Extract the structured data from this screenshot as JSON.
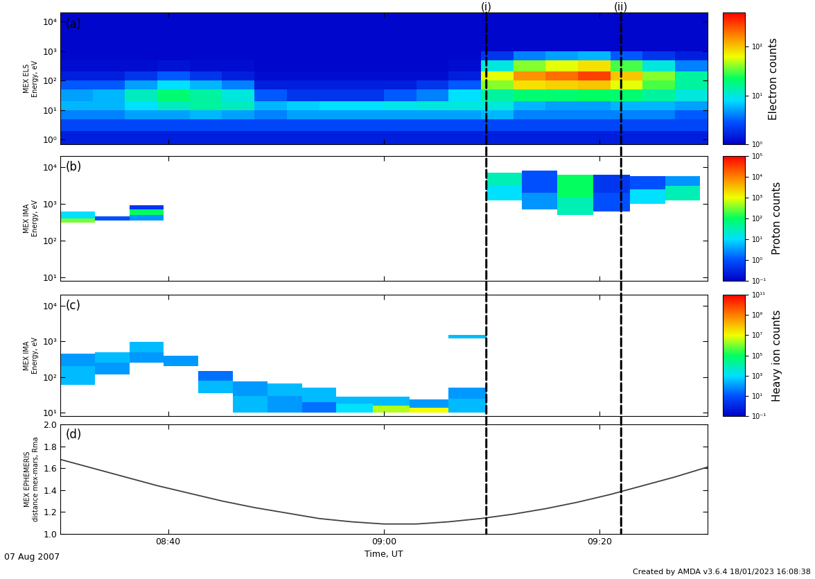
{
  "chart_data": [
    {
      "type": "spectrogram",
      "label": "(a)",
      "ylabel": "MEX ELS\nEnergy, eV",
      "log": "y",
      "tick_labels": "y",
      "xlim": [
        510,
        570
      ],
      "xticks": [
        {
          "value": 520,
          "label": "08:40"
        },
        {
          "value": 540,
          "label": "09:00"
        },
        {
          "value": 560,
          "label": "09:20"
        }
      ],
      "ylim": [
        0.7,
        20000
      ],
      "yticks": [
        {
          "value": 1,
          "label": "10⁰"
        },
        {
          "value": 10,
          "label": "10¹"
        },
        {
          "value": 100,
          "label": "10²"
        },
        {
          "value": 1000,
          "label": "10³"
        },
        {
          "value": 10000,
          "label": "10⁴"
        }
      ],
      "colorbar": {
        "label": "Electron counts",
        "range": [
          1,
          500
        ],
        "ticks": [
          {
            "value": 1,
            "label": "10⁰"
          },
          {
            "value": 10,
            "label": "10¹"
          },
          {
            "value": 100,
            "label": "10²"
          }
        ]
      },
      "time_edges": [
        510,
        513,
        516,
        519,
        522,
        525,
        528,
        531,
        534,
        537,
        540,
        543,
        546,
        549,
        552,
        555,
        558,
        561,
        564,
        567,
        570
      ],
      "energy_edges": [
        0.7,
        2,
        5,
        10,
        20,
        50,
        100,
        200,
        500,
        1000,
        20000
      ],
      "counts": [
        [
          1.5,
          1.5,
          1.5,
          1.5,
          1.5,
          1.5,
          1.5,
          1.5,
          1.5,
          1.5,
          1.5,
          1.5,
          1.5,
          1.5,
          1.5,
          1.5,
          1.5,
          1.5,
          1.5,
          1.5
        ],
        [
          2.5,
          2.5,
          2.5,
          2.5,
          2.5,
          2.5,
          2.5,
          2.5,
          2.5,
          2.5,
          2.5,
          2.5,
          2.5,
          2.5,
          2.5,
          2.5,
          2.5,
          2.5,
          2.5,
          2.5
        ],
        [
          4,
          4,
          5,
          5,
          6,
          5,
          4,
          5,
          5,
          5,
          5,
          5,
          5,
          6,
          4,
          4,
          4,
          4,
          4,
          3
        ],
        [
          6,
          6,
          8,
          12,
          15,
          12,
          6,
          7,
          8,
          8,
          9,
          10,
          10,
          10,
          6,
          5,
          5,
          6,
          6,
          5
        ],
        [
          5,
          6,
          12,
          20,
          15,
          10,
          3,
          2,
          2,
          2,
          3,
          4,
          8,
          15,
          20,
          20,
          22,
          20,
          15,
          10
        ],
        [
          3,
          3,
          5,
          8,
          6,
          4,
          1.5,
          1.5,
          1.5,
          1.5,
          1.5,
          2,
          3,
          40,
          80,
          90,
          100,
          60,
          30,
          15
        ],
        [
          1.5,
          1.5,
          2,
          3,
          2,
          1.5,
          1.2,
          1.2,
          1.2,
          1.2,
          1.2,
          1.2,
          1.5,
          60,
          150,
          200,
          300,
          100,
          40,
          15
        ],
        [
          1.2,
          1.2,
          1.2,
          1.3,
          1.2,
          1.2,
          1.1,
          1.1,
          1.1,
          1.1,
          1.1,
          1.1,
          1.2,
          10,
          40,
          60,
          80,
          30,
          10,
          4
        ],
        [
          1.1,
          1.1,
          1.1,
          1.1,
          1.1,
          1.1,
          1.1,
          1.1,
          1.1,
          1.1,
          1.1,
          1.1,
          1.1,
          2,
          4,
          5,
          6,
          3,
          2,
          1.5
        ],
        [
          1.1,
          1.1,
          1.1,
          1.1,
          1.1,
          1.1,
          1.1,
          1.1,
          1.1,
          1.1,
          1.1,
          1.1,
          1.1,
          1.1,
          1.1,
          1.1,
          1.1,
          1.1,
          1.1,
          1.1
        ]
      ]
    },
    {
      "type": "cells",
      "label": "(b)",
      "ylabel": "MEX IMA\nEnergy, eV",
      "log": "y",
      "tick_labels": "y",
      "xlim": [
        510,
        570
      ],
      "xticks": [
        {
          "value": 520,
          "label": "08:40"
        },
        {
          "value": 540,
          "label": "09:00"
        },
        {
          "value": 560,
          "label": "09:20"
        }
      ],
      "ylim": [
        8,
        20000
      ],
      "yticks": [
        {
          "value": 10,
          "label": "10¹"
        },
        {
          "value": 100,
          "label": "10²"
        },
        {
          "value": 1000,
          "label": "10³"
        },
        {
          "value": 10000,
          "label": "10⁴"
        }
      ],
      "colorbar": {
        "label": "Proton counts",
        "range": [
          0.1,
          100000
        ],
        "ticks": [
          {
            "value": 0.1,
            "label": "10⁻¹"
          },
          {
            "value": 1,
            "label": "10⁰"
          },
          {
            "value": 10,
            "label": "10¹"
          },
          {
            "value": 100,
            "label": "10²"
          },
          {
            "value": 1000,
            "label": "10³"
          },
          {
            "value": 10000,
            "label": "10⁴"
          },
          {
            "value": 100000,
            "label": "10⁵"
          }
        ]
      },
      "cells": [
        [
          510,
          513.2,
          300,
          400,
          300
        ],
        [
          510,
          513.2,
          400,
          600,
          10
        ],
        [
          513.2,
          516.4,
          350,
          450,
          1
        ],
        [
          516.4,
          519.6,
          350,
          500,
          3
        ],
        [
          516.4,
          519.6,
          500,
          700,
          100
        ],
        [
          516.4,
          519.6,
          700,
          900,
          0.5
        ],
        [
          549.5,
          552.8,
          1200,
          3000,
          10
        ],
        [
          549.5,
          552.8,
          3000,
          7000,
          30
        ],
        [
          552.8,
          556.1,
          700,
          2000,
          3
        ],
        [
          552.8,
          556.1,
          2000,
          8000,
          1
        ],
        [
          556.1,
          559.4,
          500,
          1500,
          30
        ],
        [
          556.1,
          559.4,
          1500,
          6000,
          100
        ],
        [
          559.4,
          562.8,
          600,
          2000,
          1
        ],
        [
          559.4,
          562.8,
          2000,
          6000,
          0.5
        ],
        [
          562.8,
          566.1,
          1000,
          2500,
          10
        ],
        [
          562.8,
          566.1,
          2500,
          5500,
          1
        ],
        [
          566.1,
          569.3,
          1200,
          3000,
          30
        ],
        [
          566.1,
          569.3,
          3000,
          5500,
          3
        ]
      ]
    },
    {
      "type": "cells",
      "label": "(c)",
      "ylabel": "MEX IMA\nEnergy, eV",
      "log": "y",
      "tick_labels": "y",
      "xlim": [
        510,
        570
      ],
      "xticks": [
        {
          "value": 520,
          "label": "08:40"
        },
        {
          "value": 540,
          "label": "09:00"
        },
        {
          "value": 560,
          "label": "09:20"
        }
      ],
      "ylim": [
        8,
        20000
      ],
      "yticks": [
        {
          "value": 10,
          "label": "10¹"
        },
        {
          "value": 100,
          "label": "10²"
        },
        {
          "value": 1000,
          "label": "10³"
        },
        {
          "value": 10000,
          "label": "10⁴"
        }
      ],
      "colorbar": {
        "label": "Heavy ion counts",
        "range": [
          0.1,
          100000000000
        ],
        "ticks": [
          {
            "value": 0.1,
            "label": "10⁻¹"
          },
          {
            "value": 10,
            "label": "10¹"
          },
          {
            "value": 1000,
            "label": "10³"
          },
          {
            "value": 100000,
            "label": "10⁵"
          },
          {
            "value": 10000000,
            "label": "10⁷"
          },
          {
            "value": 1000000000,
            "label": "10⁹"
          },
          {
            "value": 100000000000,
            "label": "10¹¹"
          }
        ]
      },
      "cells": [
        [
          510,
          513.2,
          60,
          200,
          300
        ],
        [
          510,
          513.2,
          200,
          450,
          100
        ],
        [
          513.2,
          516.4,
          120,
          250,
          100
        ],
        [
          513.2,
          516.4,
          250,
          500,
          300
        ],
        [
          516.4,
          519.6,
          250,
          500,
          100
        ],
        [
          516.4,
          519.6,
          500,
          950,
          300
        ],
        [
          519.6,
          522.8,
          200,
          400,
          100
        ],
        [
          522.8,
          526,
          35,
          80,
          300
        ],
        [
          522.8,
          526,
          80,
          150,
          30
        ],
        [
          526,
          529.2,
          10,
          30,
          300
        ],
        [
          526,
          529.2,
          30,
          75,
          100
        ],
        [
          529.2,
          532.4,
          10,
          30,
          100
        ],
        [
          529.2,
          532.4,
          30,
          65,
          300
        ],
        [
          532.4,
          535.6,
          10,
          20,
          30
        ],
        [
          532.4,
          535.6,
          20,
          50,
          300
        ],
        [
          535.6,
          539,
          10,
          18,
          1000
        ],
        [
          535.6,
          539,
          18,
          28,
          300
        ],
        [
          539,
          542.4,
          10,
          16,
          3000000
        ],
        [
          539,
          542.4,
          16,
          28,
          300
        ],
        [
          542.4,
          546,
          10,
          14,
          10000000
        ],
        [
          542.4,
          546,
          14,
          24,
          100
        ],
        [
          546,
          549.5,
          10,
          25,
          300
        ],
        [
          546,
          549.5,
          25,
          50,
          100
        ],
        [
          546,
          549.5,
          1200,
          1500,
          300
        ]
      ]
    },
    {
      "type": "line",
      "label": "(d)",
      "ylabel": "MEX EPHEMERIS\ndistance mex-mars, Rma",
      "xlabel": "Time, UT",
      "color": "#404040",
      "xlim": [
        510,
        570
      ],
      "xticks": [
        {
          "value": 520,
          "label": "08:40"
        },
        {
          "value": 540,
          "label": "09:00"
        },
        {
          "value": 560,
          "label": "09:20"
        }
      ],
      "ylim": [
        1.0,
        2.0
      ],
      "yticks": [
        1.0,
        1.2,
        1.4,
        1.6,
        1.8,
        2.0
      ],
      "x": [
        510,
        513,
        516,
        519,
        522,
        525,
        528,
        531,
        534,
        537,
        540,
        543,
        546,
        549,
        552,
        555,
        558,
        561,
        564,
        567,
        570
      ],
      "values": [
        1.68,
        1.6,
        1.52,
        1.44,
        1.37,
        1.3,
        1.24,
        1.19,
        1.14,
        1.11,
        1.09,
        1.09,
        1.11,
        1.14,
        1.18,
        1.23,
        1.29,
        1.36,
        1.44,
        1.52,
        1.61
      ]
    }
  ],
  "events": [
    {
      "x": 549.5,
      "label": "(i)"
    },
    {
      "x": 562,
      "label": "(ii)"
    }
  ],
  "date": "07 Aug 2007",
  "credit": "Created by AMDA v3.6.4 18/01/2023 16:08:38"
}
